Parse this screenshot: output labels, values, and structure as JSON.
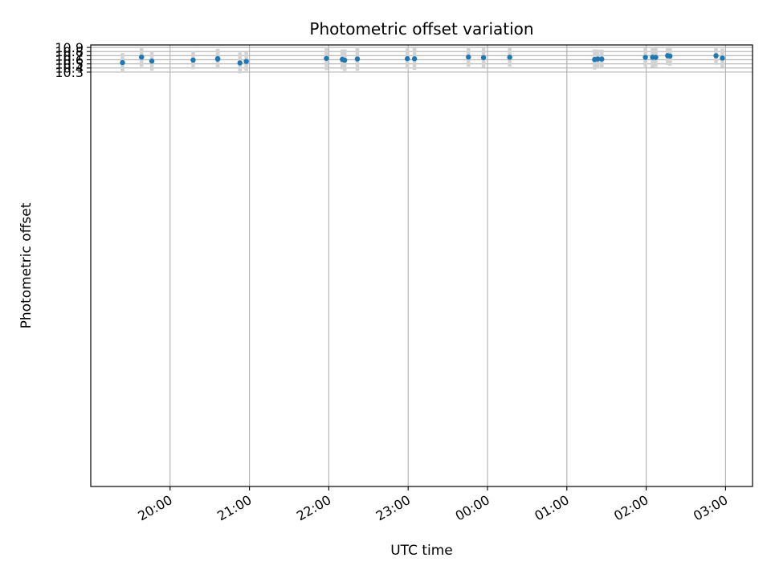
{
  "chart_data": {
    "type": "scatter",
    "title": "Photometric offset variation",
    "xlabel": "UTC time",
    "ylabel": "Photometric offset",
    "x_unit": "hours",
    "x_tick_values": [
      20,
      21,
      22,
      23,
      24,
      25,
      26,
      27
    ],
    "x_tick_labels": [
      "20:00",
      "21:00",
      "22:00",
      "23:00",
      "00:00",
      "01:00",
      "02:00",
      "03:00"
    ],
    "xlim": [
      19.0,
      27.34
    ],
    "ylim": [
      0.2366,
      10.96
    ],
    "y_tick_values": [
      10.3,
      10.4,
      10.5,
      10.6,
      10.7,
      10.8,
      10.9
    ],
    "y_tick_labels": [
      "10.3",
      "10.4",
      "10.5",
      "10.6",
      "10.7",
      "10.8",
      "10.9"
    ],
    "grid": true,
    "marker_color": "#1f77b4",
    "errorbar_color": "#d3d3d3",
    "points": [
      {
        "x": 19.4,
        "y": 10.531,
        "err": 0.231
      },
      {
        "x": 19.64,
        "y": 10.664,
        "err": 0.236
      },
      {
        "x": 19.77,
        "y": 10.568,
        "err": 0.231
      },
      {
        "x": 20.29,
        "y": 10.593,
        "err": 0.221
      },
      {
        "x": 20.6,
        "y": 10.629,
        "err": 0.237
      },
      {
        "x": 20.6,
        "y": 10.616,
        "err": 0.235
      },
      {
        "x": 20.88,
        "y": 10.523,
        "err": 0.254
      },
      {
        "x": 20.96,
        "y": 10.559,
        "err": 0.229
      },
      {
        "x": 21.97,
        "y": 10.633,
        "err": 0.285
      },
      {
        "x": 22.17,
        "y": 10.61,
        "err": 0.241
      },
      {
        "x": 22.2,
        "y": 10.59,
        "err": 0.263
      },
      {
        "x": 22.36,
        "y": 10.62,
        "err": 0.286
      },
      {
        "x": 22.99,
        "y": 10.627,
        "err": 0.248
      },
      {
        "x": 23.08,
        "y": 10.624,
        "err": 0.27
      },
      {
        "x": 23.76,
        "y": 10.666,
        "err": 0.235
      },
      {
        "x": 23.95,
        "y": 10.652,
        "err": 0.236
      },
      {
        "x": 24.28,
        "y": 10.66,
        "err": 0.227
      },
      {
        "x": 25.35,
        "y": 10.607,
        "err": 0.245
      },
      {
        "x": 25.39,
        "y": 10.619,
        "err": 0.23
      },
      {
        "x": 25.44,
        "y": 10.617,
        "err": 0.231
      },
      {
        "x": 25.99,
        "y": 10.657,
        "err": 0.229
      },
      {
        "x": 26.08,
        "y": 10.66,
        "err": 0.245
      },
      {
        "x": 26.12,
        "y": 10.658,
        "err": 0.232
      },
      {
        "x": 26.27,
        "y": 10.699,
        "err": 0.224
      },
      {
        "x": 26.3,
        "y": 10.69,
        "err": 0.234
      },
      {
        "x": 26.88,
        "y": 10.698,
        "err": 0.219
      },
      {
        "x": 26.96,
        "y": 10.641,
        "err": 0.233
      }
    ]
  }
}
